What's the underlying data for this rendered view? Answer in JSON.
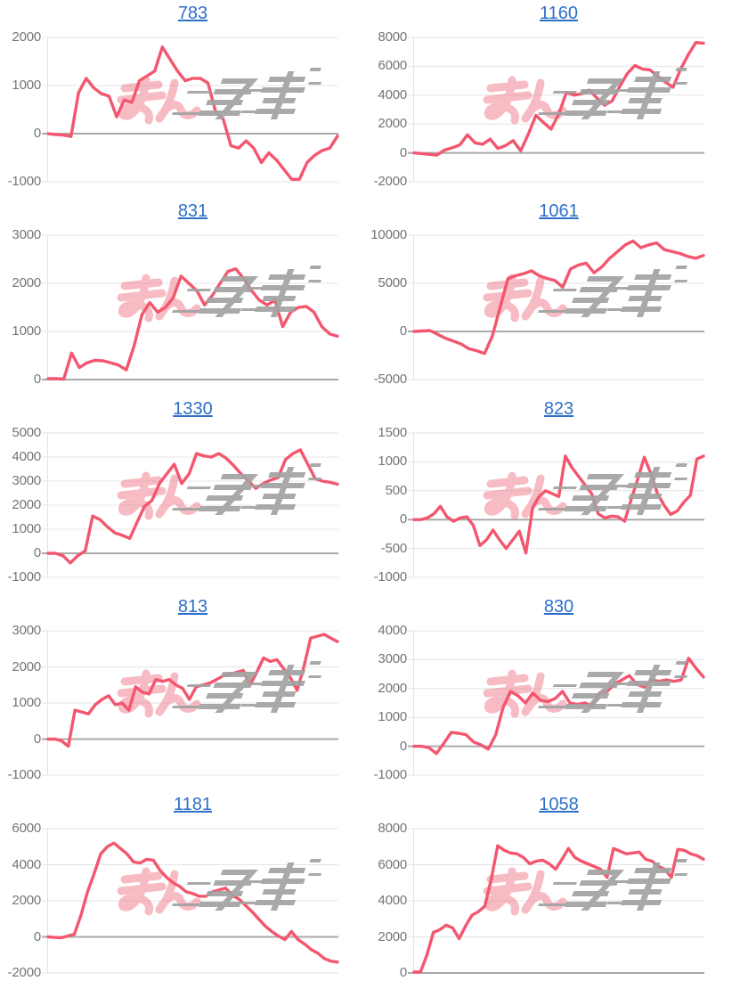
{
  "page": {
    "background": "#ffffff"
  },
  "watermark": {
    "text": "みんレポ",
    "pink_part": "みん",
    "gray_part": "レポ"
  },
  "colors": {
    "line": "#f3566e",
    "title_link": "#2e6fc7",
    "tick_label": "#757575",
    "gridline": "#e4e4e4",
    "zero_line": "#a9a9a9",
    "watermark_pink": "#ef7284",
    "watermark_gray": "#a2a2a2"
  },
  "chart_data": [
    {
      "type": "line",
      "title": "783",
      "ylabel": "",
      "ylim": [
        -1000,
        2000
      ],
      "yticks": [
        2000,
        1000,
        0,
        -1000
      ],
      "grid": true,
      "values": [
        0,
        -20,
        -30,
        -60,
        850,
        1150,
        950,
        830,
        780,
        350,
        700,
        650,
        1100,
        1200,
        1300,
        1800,
        1550,
        1300,
        1100,
        1150,
        1150,
        1050,
        450,
        300,
        -250,
        -300,
        -150,
        -300,
        -600,
        -400,
        -550,
        -750,
        -950,
        -950,
        -600,
        -450,
        -350,
        -300,
        -50
      ]
    },
    {
      "type": "line",
      "title": "1160",
      "ylabel": "",
      "ylim": [
        -2000,
        8000
      ],
      "yticks": [
        8000,
        6000,
        4000,
        2000,
        0,
        -2000
      ],
      "grid": true,
      "values": [
        0,
        -50,
        -100,
        -150,
        200,
        350,
        550,
        1250,
        700,
        600,
        950,
        300,
        500,
        850,
        150,
        1300,
        2600,
        2100,
        1650,
        2700,
        4200,
        4000,
        4100,
        4350,
        3800,
        3300,
        3600,
        4600,
        5500,
        6050,
        5800,
        5750,
        5300,
        4900,
        4550,
        5800,
        6800,
        7650,
        7600
      ]
    },
    {
      "type": "line",
      "title": "831",
      "ylabel": "",
      "ylim": [
        0,
        3000
      ],
      "yticks": [
        3000,
        2000,
        1000,
        0
      ],
      "grid": true,
      "values": [
        20,
        20,
        10,
        550,
        250,
        350,
        400,
        390,
        350,
        300,
        200,
        700,
        1350,
        1600,
        1400,
        1500,
        1700,
        2150,
        2000,
        1850,
        1550,
        1750,
        2000,
        2250,
        2300,
        2100,
        1850,
        1650,
        1550,
        1650,
        1100,
        1400,
        1500,
        1520,
        1400,
        1100,
        950,
        900
      ]
    },
    {
      "type": "line",
      "title": "1061",
      "ylabel": "",
      "ylim": [
        -5000,
        10000
      ],
      "yticks": [
        10000,
        5000,
        0,
        -5000
      ],
      "grid": true,
      "values": [
        0,
        50,
        100,
        -300,
        -700,
        -1000,
        -1300,
        -1800,
        -2000,
        -2300,
        -500,
        2500,
        5500,
        5800,
        6000,
        6300,
        5800,
        5500,
        5300,
        4600,
        6500,
        6900,
        7100,
        6100,
        6700,
        7600,
        8300,
        9000,
        9400,
        8700,
        9000,
        9200,
        8500,
        8300,
        8100,
        7800,
        7600,
        7900
      ]
    },
    {
      "type": "line",
      "title": "1330",
      "ylabel": "",
      "ylim": [
        -1000,
        5000
      ],
      "yticks": [
        5000,
        4000,
        3000,
        2000,
        1000,
        0,
        -1000
      ],
      "grid": true,
      "values": [
        0,
        0,
        -100,
        -400,
        -100,
        100,
        1550,
        1400,
        1100,
        850,
        750,
        620,
        1300,
        1950,
        2200,
        2900,
        3300,
        3700,
        2900,
        3300,
        4150,
        4050,
        4000,
        4150,
        3950,
        3650,
        3300,
        3000,
        2700,
        2900,
        3050,
        3150,
        3900,
        4150,
        4300,
        3700,
        3100,
        3000,
        2950,
        2870
      ]
    },
    {
      "type": "line",
      "title": "823",
      "ylabel": "",
      "ylim": [
        -1000,
        1500
      ],
      "yticks": [
        1500,
        1000,
        500,
        0,
        -500,
        -1000
      ],
      "grid": true,
      "values": [
        0,
        0,
        30,
        100,
        230,
        50,
        -30,
        30,
        50,
        -100,
        -450,
        -350,
        -180,
        -350,
        -500,
        -350,
        -200,
        -580,
        200,
        400,
        500,
        450,
        400,
        1100,
        900,
        750,
        600,
        450,
        100,
        30,
        60,
        50,
        -30,
        350,
        700,
        1080,
        800,
        450,
        250,
        90,
        150,
        300,
        420,
        1050,
        1100
      ]
    },
    {
      "type": "line",
      "title": "813",
      "ylabel": "",
      "ylim": [
        -1000,
        3000
      ],
      "yticks": [
        3000,
        2000,
        1000,
        0,
        -1000
      ],
      "grid": true,
      "values": [
        0,
        0,
        -50,
        -200,
        800,
        750,
        700,
        950,
        1100,
        1200,
        950,
        1000,
        800,
        1450,
        1300,
        1250,
        1650,
        1600,
        1650,
        1500,
        1400,
        1100,
        1450,
        1500,
        1550,
        1650,
        1750,
        1800,
        1850,
        1900,
        1500,
        1850,
        2250,
        2150,
        2200,
        1950,
        1700,
        1350,
        2000,
        2800,
        2850,
        2900,
        2800,
        2700
      ]
    },
    {
      "type": "line",
      "title": "830",
      "ylabel": "",
      "ylim": [
        -1000,
        4000
      ],
      "yticks": [
        4000,
        3000,
        2000,
        1000,
        0,
        -1000
      ],
      "grid": true,
      "values": [
        0,
        0,
        -50,
        -250,
        100,
        480,
        450,
        400,
        150,
        50,
        -100,
        400,
        1350,
        1900,
        1750,
        1500,
        1850,
        1600,
        1550,
        1650,
        1900,
        1500,
        1450,
        1500,
        1400,
        1850,
        1900,
        2150,
        2300,
        2450,
        2150,
        2050,
        2300,
        2250,
        2300,
        2250,
        2300,
        3050,
        2700,
        2400
      ]
    },
    {
      "type": "line",
      "title": "1181",
      "ylabel": "",
      "ylim": [
        -2000,
        6000
      ],
      "yticks": [
        6000,
        4000,
        2000,
        0,
        -2000
      ],
      "grid": true,
      "values": [
        0,
        -30,
        -50,
        50,
        150,
        1200,
        2500,
        3500,
        4600,
        5000,
        5200,
        4900,
        4600,
        4150,
        4100,
        4300,
        4250,
        3700,
        3300,
        3000,
        2800,
        2500,
        2400,
        2250,
        2250,
        2500,
        2600,
        2700,
        2300,
        2100,
        1750,
        1400,
        1000,
        600,
        300,
        50,
        -150,
        300,
        -150,
        -400,
        -700,
        -900,
        -1200,
        -1350,
        -1400
      ]
    },
    {
      "type": "line",
      "title": "1058",
      "ylabel": "",
      "ylim": [
        0,
        8000
      ],
      "yticks": [
        8000,
        6000,
        4000,
        2000,
        0
      ],
      "grid": true,
      "values": [
        50,
        50,
        1000,
        2250,
        2400,
        2650,
        2500,
        1900,
        2600,
        3200,
        3400,
        3700,
        5200,
        7050,
        6800,
        6650,
        6600,
        6400,
        6050,
        6200,
        6250,
        6050,
        5750,
        6300,
        6900,
        6400,
        6200,
        6050,
        5900,
        5750,
        5300,
        6900,
        6750,
        6600,
        6650,
        6700,
        6300,
        6200,
        5900,
        5750,
        5300,
        6850,
        6800,
        6600,
        6500,
        6300
      ]
    }
  ]
}
